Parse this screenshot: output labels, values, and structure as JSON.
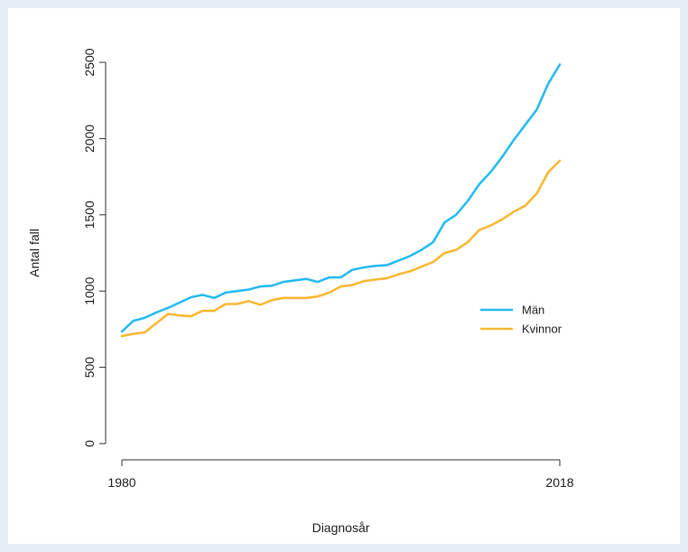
{
  "chart_data": {
    "type": "line",
    "title": "",
    "xlabel": "Diagnosår",
    "ylabel": "Antal fall",
    "xlim": [
      1980,
      2018
    ],
    "ylim": [
      0,
      2500
    ],
    "x_ticks": [
      1980,
      2018
    ],
    "y_ticks": [
      0,
      500,
      1000,
      1500,
      2000,
      2500
    ],
    "grid": false,
    "legend_position": "right",
    "x": [
      1980,
      1981,
      1982,
      1983,
      1984,
      1985,
      1986,
      1987,
      1988,
      1989,
      1990,
      1991,
      1992,
      1993,
      1994,
      1995,
      1996,
      1997,
      1998,
      1999,
      2000,
      2001,
      2002,
      2003,
      2004,
      2005,
      2006,
      2007,
      2008,
      2009,
      2010,
      2011,
      2012,
      2013,
      2014,
      2015,
      2016,
      2017,
      2018
    ],
    "series": [
      {
        "name": "Män",
        "color": "#29bcf1",
        "values": [
          735,
          805,
          825,
          860,
          890,
          925,
          960,
          975,
          955,
          990,
          1000,
          1010,
          1030,
          1035,
          1060,
          1070,
          1080,
          1060,
          1090,
          1090,
          1140,
          1155,
          1165,
          1170,
          1200,
          1230,
          1270,
          1320,
          1450,
          1500,
          1590,
          1700,
          1780,
          1880,
          1990,
          2090,
          2190,
          2360,
          2485
        ]
      },
      {
        "name": "Kvinnor",
        "color": "#f9b936",
        "values": [
          705,
          720,
          730,
          790,
          850,
          840,
          835,
          870,
          870,
          915,
          915,
          935,
          910,
          940,
          955,
          955,
          955,
          965,
          990,
          1030,
          1040,
          1065,
          1075,
          1085,
          1110,
          1130,
          1160,
          1190,
          1250,
          1270,
          1320,
          1400,
          1430,
          1470,
          1520,
          1560,
          1640,
          1780,
          1855
        ]
      }
    ]
  }
}
